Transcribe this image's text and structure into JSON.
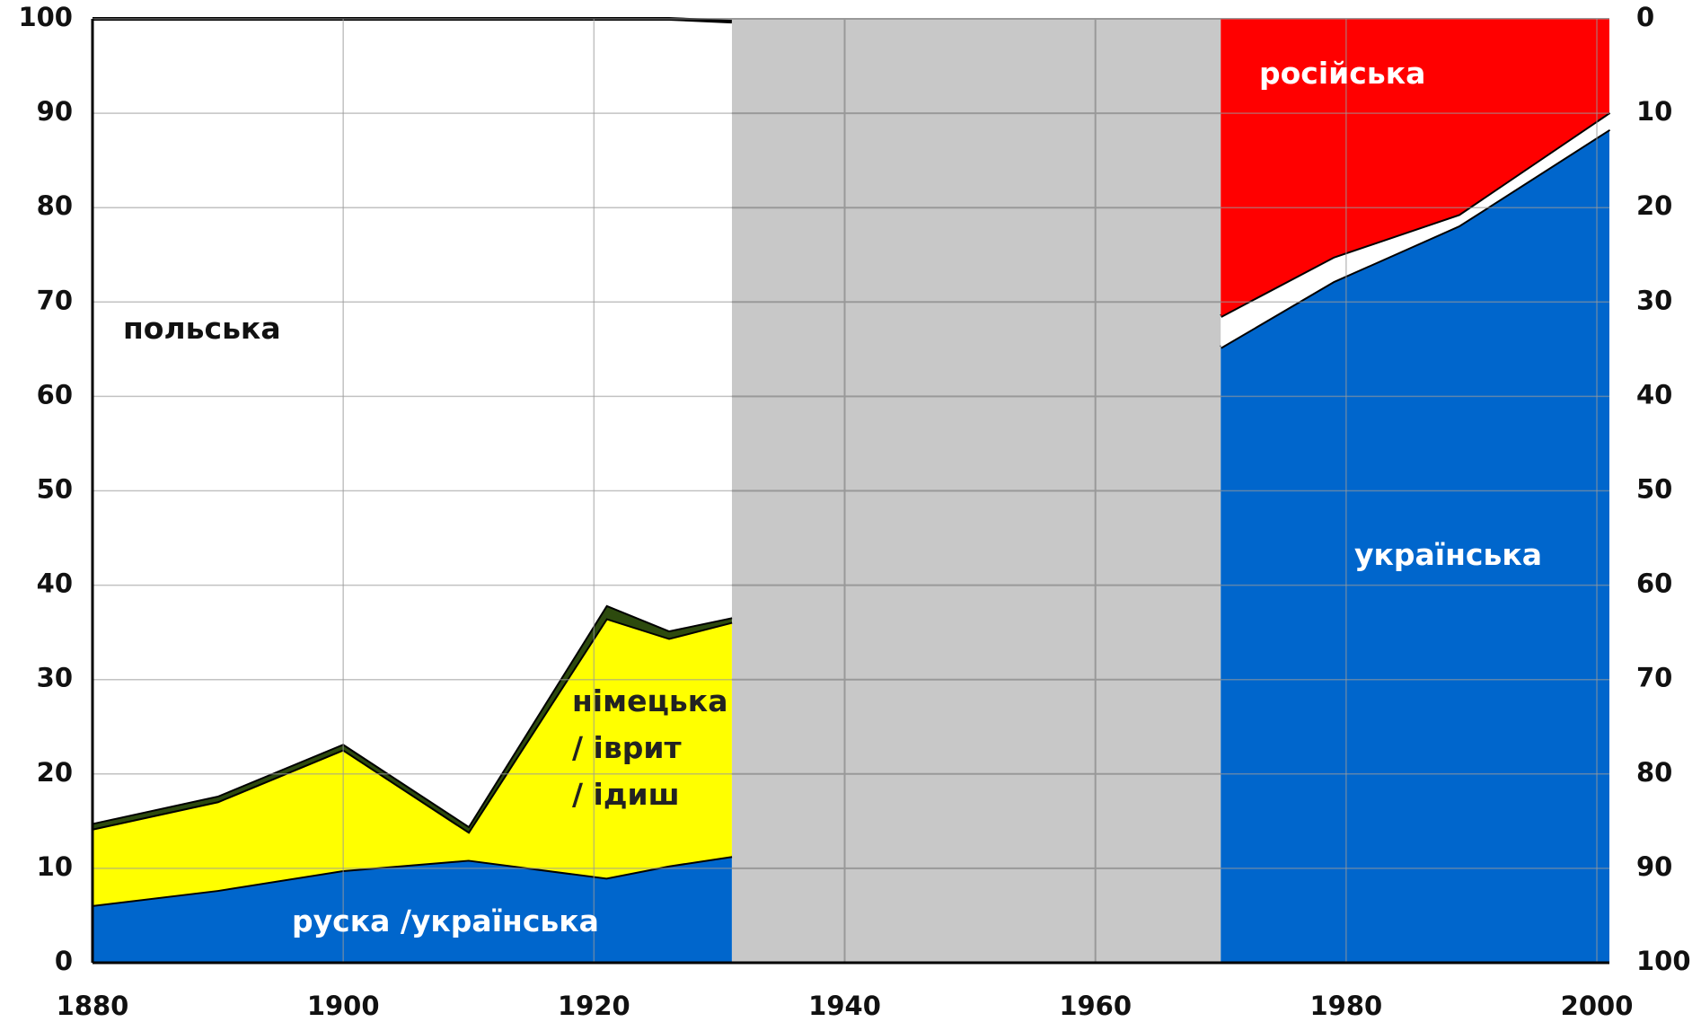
{
  "chart_data": {
    "type": "stacked-area",
    "x": [
      1880,
      1890,
      1900,
      1910,
      1921,
      1926,
      1931,
      1970,
      1979,
      1989,
      2001
    ],
    "series": [
      {
        "name": "руска /українська",
        "color": "#0066cc",
        "values": [
          6.1,
          7.7,
          9.8,
          10.9,
          9.0,
          10.3,
          11.3,
          null,
          null,
          null,
          null
        ]
      },
      {
        "name": "українська",
        "color": "#0066cc",
        "values": [
          null,
          null,
          null,
          null,
          null,
          null,
          null,
          65.2,
          72.2,
          78.1,
          88.3
        ]
      },
      {
        "name": "німецька\n/ іврит\n/ ідиш",
        "color": "#ffff00",
        "values": [
          8.1,
          9.4,
          12.8,
          3.0,
          27.5,
          24.1,
          24.8,
          null,
          null,
          null,
          null
        ]
      },
      {
        "color": "#2d4a0e",
        "values": [
          0.6,
          0.6,
          0.6,
          0.6,
          1.4,
          0.8,
          0.5,
          null,
          null,
          null,
          null
        ]
      },
      {
        "color": "#ffffff",
        "values": [
          null,
          null,
          null,
          null,
          null,
          null,
          null,
          3.3,
          2.6,
          1.2,
          1.8
        ]
      },
      {
        "name": "польська",
        "color": "#ffffff",
        "values": [
          85.2,
          82.3,
          76.8,
          85.5,
          62.1,
          64.8,
          63.1,
          null,
          null,
          null,
          null
        ]
      },
      {
        "name": "російська",
        "color": "#ff0000",
        "values": [
          null,
          null,
          null,
          null,
          null,
          null,
          null,
          31.5,
          25.2,
          20.7,
          9.9
        ]
      }
    ],
    "xlim": [
      1880,
      2001
    ],
    "xticks": [
      1880,
      1900,
      1920,
      1940,
      1960,
      1980,
      2000
    ],
    "ylim": [
      0,
      100
    ],
    "yticks": [
      0,
      10,
      20,
      30,
      40,
      50,
      60,
      70,
      80,
      90,
      100
    ],
    "y2lim": [
      100,
      0
    ],
    "y2ticks": [
      0,
      10,
      20,
      30,
      40,
      50,
      60,
      70,
      80,
      90,
      100
    ],
    "grid": true
  }
}
